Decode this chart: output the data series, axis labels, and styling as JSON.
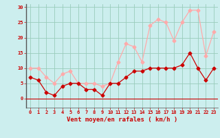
{
  "hours": [
    0,
    1,
    2,
    3,
    4,
    5,
    6,
    7,
    8,
    9,
    10,
    11,
    12,
    13,
    14,
    15,
    16,
    17,
    18,
    19,
    20,
    21,
    22,
    23
  ],
  "mean_wind": [
    7,
    6,
    2,
    1,
    4,
    5,
    5,
    3,
    3,
    1,
    5,
    5,
    7,
    9,
    9,
    10,
    10,
    10,
    10,
    11,
    15,
    10,
    6,
    10
  ],
  "gusts": [
    10,
    10,
    7,
    5,
    8,
    9,
    5,
    5,
    5,
    4,
    5,
    12,
    18,
    17,
    12,
    24,
    26,
    25,
    19,
    25,
    29,
    29,
    14,
    22
  ],
  "mean_color": "#cc0000",
  "gust_color": "#ffaaaa",
  "bg_color": "#cceeee",
  "grid_color": "#99ccbb",
  "xlabel": "Vent moyen/en rafales ( km/h )",
  "xlabel_color": "#cc0000",
  "tick_color": "#cc0000",
  "yticks": [
    0,
    5,
    10,
    15,
    20,
    25,
    30
  ],
  "ylim": [
    -3,
    31
  ],
  "xlim": [
    -0.5,
    23.5
  ],
  "hline_color": "#cc0000",
  "spine_color": "#555555",
  "marker": "D",
  "markersize": 2.5,
  "linewidth": 0.9,
  "tick_fontsize": 5.0,
  "xlabel_fontsize": 6.5
}
